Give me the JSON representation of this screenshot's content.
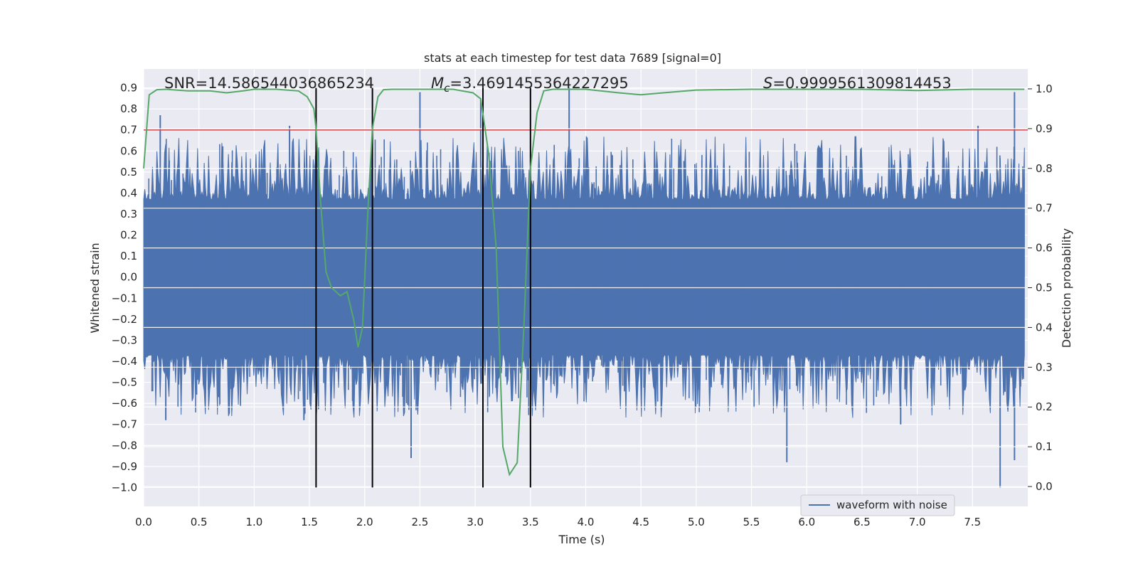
{
  "chart_data": {
    "type": "line",
    "title": "stats at each timestep for test data 7689 [signal=0]",
    "xlabel": "Time (s)",
    "ylabel": "Whitened strain",
    "y2label": "Detection probability",
    "xlim": [
      0.0,
      8.0
    ],
    "ylim": [
      -1.09,
      0.99
    ],
    "y2lim": [
      -0.05,
      1.05
    ],
    "xticks": [
      0.0,
      0.5,
      1.0,
      1.5,
      2.0,
      2.5,
      3.0,
      3.5,
      4.0,
      4.5,
      5.0,
      5.5,
      6.0,
      6.5,
      7.0,
      7.5
    ],
    "xtick_labels": [
      "0.0",
      "0.5",
      "1.0",
      "1.5",
      "2.0",
      "2.5",
      "3.0",
      "3.5",
      "4.0",
      "4.5",
      "5.0",
      "5.5",
      "6.0",
      "6.5",
      "7.0",
      "7.5"
    ],
    "yticks": [
      0.9,
      0.8,
      0.7,
      0.6,
      0.5,
      0.4,
      0.3,
      0.2,
      0.1,
      0.0,
      -0.1,
      -0.2,
      -0.3,
      -0.4,
      -0.5,
      -0.6,
      -0.7,
      -0.8,
      -0.9,
      -1.0
    ],
    "ytick_labels": [
      "0.9",
      "0.8",
      "0.7",
      "0.6",
      "0.5",
      "0.4",
      "0.3",
      "0.2",
      "0.1",
      "0.0",
      "−0.1",
      "−0.2",
      "−0.3",
      "−0.4",
      "−0.5",
      "−0.6",
      "−0.7",
      "−0.8",
      "−0.9",
      "−1.0"
    ],
    "y2ticks": [
      1.0,
      0.9,
      0.8,
      0.7,
      0.6,
      0.5,
      0.4,
      0.3,
      0.2,
      0.1,
      0.0
    ],
    "y2tick_labels": [
      "1.0",
      "0.9",
      "0.8",
      "0.7",
      "0.6",
      "0.5",
      "0.4",
      "0.3",
      "0.2",
      "0.1",
      "0.0"
    ],
    "grid": true,
    "annotations": {
      "snr": "SNR=14.586544036865234",
      "mc_symbol": "M",
      "mc_sub": "c",
      "mc_value": "=3.4691455364227295",
      "s_symbol": "S",
      "s_value": "=0.9999561309814453"
    },
    "waveform": {
      "name": "waveform with noise",
      "color": "#4c72b0",
      "typical_envelope": [
        -0.32,
        0.32
      ],
      "peaks": [
        {
          "x": 0.15,
          "y": 0.77
        },
        {
          "x": 1.32,
          "y": 0.72
        },
        {
          "x": 2.5,
          "y": 0.88
        },
        {
          "x": 3.05,
          "y": 0.85
        },
        {
          "x": 3.85,
          "y": 0.9
        },
        {
          "x": 7.55,
          "y": 0.72
        },
        {
          "x": 7.88,
          "y": 0.88
        },
        {
          "x": 0.2,
          "y": -0.68
        },
        {
          "x": 1.45,
          "y": -0.68
        },
        {
          "x": 2.42,
          "y": -0.86
        },
        {
          "x": 5.82,
          "y": -0.88
        },
        {
          "x": 7.75,
          "y": -1.0
        },
        {
          "x": 7.88,
          "y": -0.87
        },
        {
          "x": 6.85,
          "y": -0.7
        }
      ]
    },
    "threshold": {
      "value": 0.7,
      "color": "#c44e52"
    },
    "vertical_lines": [
      1.56,
      2.07,
      3.07,
      3.5
    ],
    "vertical_line_range": [
      -1.0,
      0.9
    ],
    "detection_probability": {
      "color": "#55a868",
      "x": [
        0.0,
        0.05,
        0.12,
        0.2,
        0.4,
        0.6,
        0.75,
        0.9,
        1.0,
        1.2,
        1.4,
        1.48,
        1.54,
        1.56,
        1.6,
        1.65,
        1.7,
        1.78,
        1.84,
        1.9,
        1.94,
        1.98,
        2.03,
        2.07,
        2.12,
        2.17,
        2.25,
        2.5,
        2.8,
        2.98,
        3.05,
        3.12,
        3.19,
        3.25,
        3.31,
        3.38,
        3.44,
        3.5,
        3.56,
        3.62,
        3.7,
        4.0,
        4.3,
        4.5,
        4.7,
        5.0,
        5.5,
        6.0,
        6.5,
        7.0,
        7.5,
        7.97
      ],
      "y": [
        0.8,
        0.985,
        0.998,
        0.999,
        0.995,
        0.995,
        0.99,
        0.995,
        0.999,
        0.999,
        0.995,
        0.98,
        0.95,
        0.9,
        0.72,
        0.54,
        0.5,
        0.48,
        0.49,
        0.42,
        0.35,
        0.4,
        0.7,
        0.9,
        0.98,
        0.998,
        0.999,
        0.999,
        0.999,
        0.99,
        0.975,
        0.84,
        0.6,
        0.1,
        0.03,
        0.06,
        0.4,
        0.8,
        0.94,
        0.995,
        0.999,
        0.999,
        0.99,
        0.985,
        0.99,
        0.997,
        0.999,
        0.999,
        0.999,
        0.996,
        0.999,
        0.999
      ]
    },
    "legend": {
      "label": "waveform with noise",
      "location": "lower-right"
    },
    "grid_color": "#ffffff",
    "plot_background": "#eaeaf2"
  }
}
